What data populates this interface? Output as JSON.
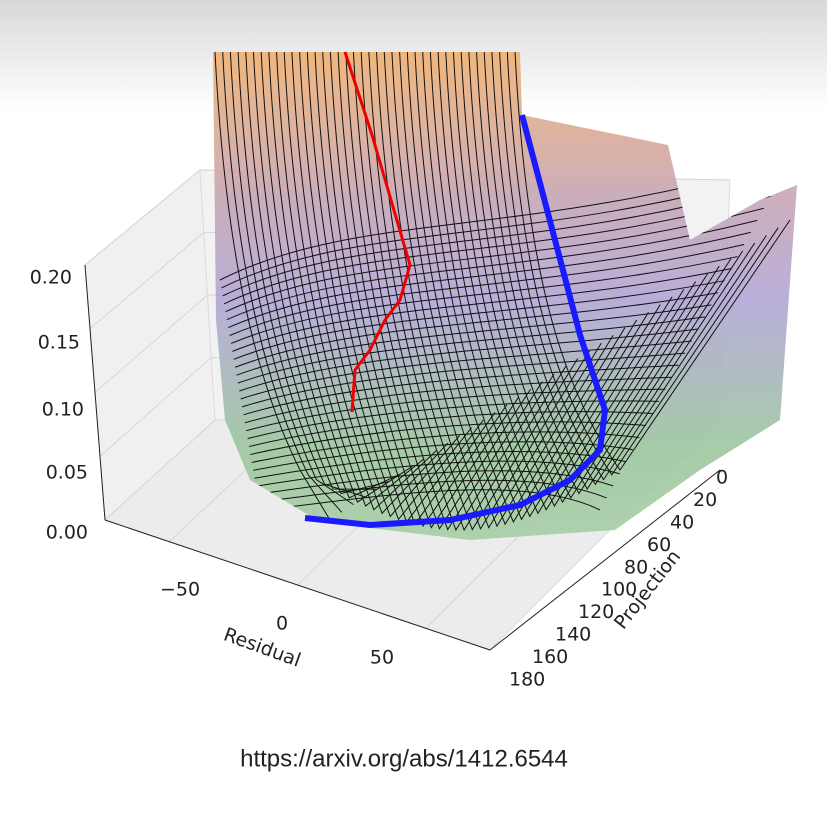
{
  "z_axis": {
    "ticks": [
      "0.20",
      "0.15",
      "0.10",
      "0.05",
      "0.00"
    ]
  },
  "x_axis": {
    "label": "Residual",
    "ticks": [
      "−50",
      "0",
      "50"
    ]
  },
  "y_axis": {
    "label": "Projection",
    "ticks": [
      "0",
      "20",
      "40",
      "60",
      "80",
      "100",
      "120",
      "140",
      "160",
      "180"
    ]
  },
  "url": "https://arxiv.org/abs/1412.6544"
}
